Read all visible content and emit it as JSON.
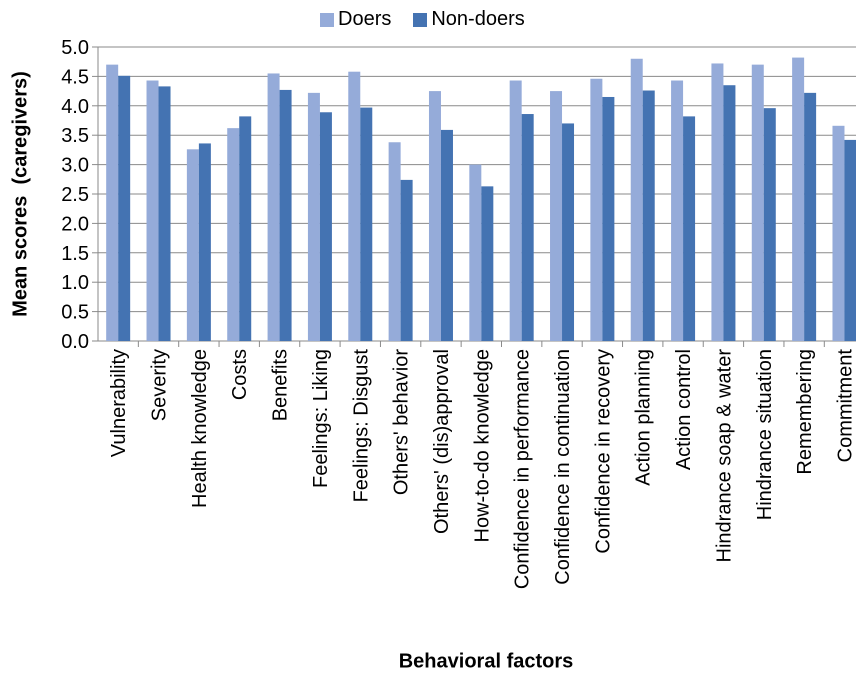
{
  "chart_data": {
    "type": "bar",
    "title": "",
    "xlabel": "Behavioral factors",
    "ylabel": "Mean scores  (caregivers)",
    "ylim": [
      0,
      5
    ],
    "yticks": [
      "0.0",
      "0.5",
      "1.0",
      "1.5",
      "2.0",
      "2.5",
      "3.0",
      "3.5",
      "4.0",
      "4.5",
      "5.0"
    ],
    "grid": true,
    "legend": "top-center",
    "categories": [
      "Vulnerability",
      "Severity",
      "Health knowledge",
      "Costs",
      "Benefits",
      "Feelings: Liking",
      "Feelings: Disgust",
      "Others' behavior",
      "Others' (dis)approval",
      "How-to-do knowledge",
      "Confidence in performance",
      "Confidence in continuation",
      "Confidence in recovery",
      "Action planning",
      "Action control",
      "Hindrance soap & water",
      "Hindrance situation",
      "Remembering",
      "Commitment"
    ],
    "series": [
      {
        "name": "Doers",
        "color": "#95abd9",
        "values": [
          4.7,
          4.43,
          3.26,
          3.62,
          4.55,
          4.22,
          4.58,
          3.38,
          4.25,
          3.0,
          4.43,
          4.25,
          4.46,
          4.8,
          4.43,
          4.72,
          4.7,
          4.82,
          3.66
        ]
      },
      {
        "name": "Non-doers",
        "color": "#4473b2",
        "values": [
          4.51,
          4.33,
          3.36,
          3.82,
          4.27,
          3.89,
          3.97,
          2.74,
          3.59,
          2.63,
          3.86,
          3.7,
          4.15,
          4.26,
          3.82,
          4.35,
          3.96,
          4.22,
          3.42
        ]
      }
    ]
  }
}
